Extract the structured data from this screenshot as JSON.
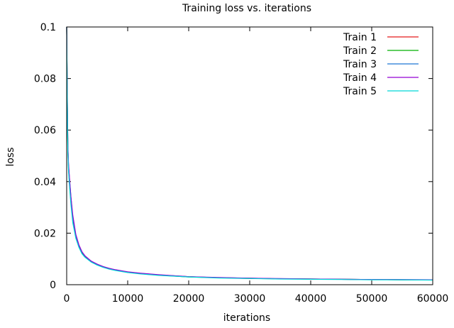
{
  "chart_data": {
    "type": "line",
    "title": "Training loss vs. iterations",
    "xlabel": "iterations",
    "ylabel": "loss",
    "xlim": [
      0,
      60000
    ],
    "ylim": [
      0,
      0.1
    ],
    "xticks": [
      0,
      10000,
      20000,
      30000,
      40000,
      50000,
      60000
    ],
    "yticks": [
      0,
      0.02,
      0.04,
      0.06,
      0.08,
      0.1
    ],
    "xtick_labels": [
      "0",
      "10000",
      "20000",
      "30000",
      "40000",
      "50000",
      "60000"
    ],
    "ytick_labels": [
      "0",
      "0.02",
      "0.04",
      "0.06",
      "0.08",
      "0.1"
    ],
    "legend_position": "top-right",
    "grid": false,
    "x": [
      0,
      100,
      200,
      300,
      500,
      700,
      1000,
      1500,
      2000,
      2500,
      3000,
      4000,
      5000,
      6000,
      7000,
      8000,
      10000,
      12000,
      15000,
      20000,
      25000,
      30000,
      35000,
      40000,
      45000,
      50000,
      55000,
      60000
    ],
    "series": [
      {
        "name": "Train 1",
        "color": "#e41a1c",
        "values": [
          0.1,
          0.072,
          0.053,
          0.046,
          0.039,
          0.033,
          0.026,
          0.019,
          0.015,
          0.0125,
          0.011,
          0.009,
          0.0078,
          0.0069,
          0.0062,
          0.0057,
          0.0049,
          0.0044,
          0.0038,
          0.0031,
          0.0027,
          0.0025,
          0.0023,
          0.0022,
          0.0021,
          0.002,
          0.0019,
          0.0019
        ]
      },
      {
        "name": "Train 2",
        "color": "#00b000",
        "values": [
          0.1,
          0.07,
          0.052,
          0.045,
          0.038,
          0.032,
          0.025,
          0.0185,
          0.0148,
          0.0123,
          0.0108,
          0.0089,
          0.0077,
          0.0068,
          0.0061,
          0.0056,
          0.0048,
          0.0043,
          0.0037,
          0.003,
          0.0027,
          0.0024,
          0.0023,
          0.0022,
          0.0021,
          0.002,
          0.0019,
          0.0019
        ]
      },
      {
        "name": "Train 3",
        "color": "#1f78d4",
        "values": [
          0.1,
          0.071,
          0.053,
          0.046,
          0.04,
          0.034,
          0.026,
          0.019,
          0.0152,
          0.0127,
          0.0111,
          0.0091,
          0.0079,
          0.007,
          0.0063,
          0.0057,
          0.0049,
          0.0044,
          0.0038,
          0.0031,
          0.0027,
          0.0025,
          0.0023,
          0.0022,
          0.0021,
          0.002,
          0.0019,
          0.0019
        ]
      },
      {
        "name": "Train 4",
        "color": "#9400d3",
        "values": [
          0.1,
          0.073,
          0.054,
          0.047,
          0.04,
          0.034,
          0.027,
          0.0195,
          0.0155,
          0.0128,
          0.0112,
          0.0092,
          0.008,
          0.007,
          0.0063,
          0.0058,
          0.005,
          0.0045,
          0.0039,
          0.0031,
          0.0028,
          0.0025,
          0.0024,
          0.0022,
          0.0021,
          0.002,
          0.002,
          0.0019
        ]
      },
      {
        "name": "Train 5",
        "color": "#00d8d8",
        "values": [
          0.1,
          0.069,
          0.051,
          0.044,
          0.037,
          0.031,
          0.024,
          0.018,
          0.0145,
          0.012,
          0.0106,
          0.0088,
          0.0076,
          0.0067,
          0.006,
          0.0055,
          0.0047,
          0.0042,
          0.0036,
          0.003,
          0.0026,
          0.0024,
          0.0022,
          0.0021,
          0.002,
          0.0019,
          0.0019,
          0.0018
        ]
      }
    ]
  }
}
